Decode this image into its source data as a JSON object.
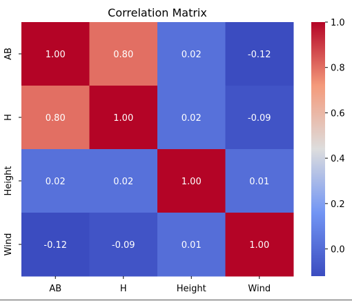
{
  "chart_data": {
    "type": "heatmap",
    "title": "Correlation Matrix",
    "x_labels": [
      "AB",
      "H",
      "Height",
      "Wind"
    ],
    "y_labels": [
      "AB",
      "H",
      "Height",
      "Wind"
    ],
    "values": [
      [
        1.0,
        0.8,
        0.02,
        -0.12
      ],
      [
        0.8,
        1.0,
        0.02,
        -0.09
      ],
      [
        0.02,
        0.02,
        1.0,
        0.01
      ],
      [
        -0.12,
        -0.09,
        0.01,
        1.0
      ]
    ],
    "cell_text": [
      [
        "1.00",
        "0.80",
        "0.02",
        "-0.12"
      ],
      [
        "0.80",
        "1.00",
        "0.02",
        "-0.09"
      ],
      [
        "0.02",
        "0.02",
        "1.00",
        "0.01"
      ],
      [
        "-0.12",
        "-0.09",
        "0.01",
        "1.00"
      ]
    ],
    "colormap": "coolwarm",
    "vmin": -0.12,
    "vmax": 1.0,
    "colorbar_ticks": [
      0.0,
      0.2,
      0.4,
      0.6,
      0.8,
      1.0
    ],
    "colorbar_tick_labels": [
      "0.0",
      "0.2",
      "0.4",
      "0.6",
      "0.8",
      "1.0"
    ]
  }
}
